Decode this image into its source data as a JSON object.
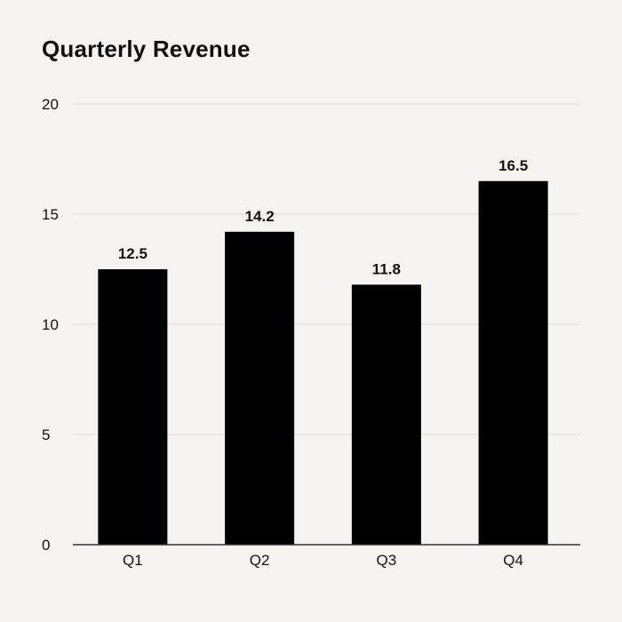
{
  "chart_data": {
    "type": "bar",
    "title": "Quarterly Revenue",
    "xlabel": "",
    "ylabel": "",
    "categories": [
      "Q1",
      "Q2",
      "Q3",
      "Q4"
    ],
    "values": [
      12.5,
      14.2,
      11.8,
      16.5
    ],
    "data_labels": [
      "12.5",
      "14.2",
      "11.8",
      "16.5"
    ],
    "ylim": [
      0,
      20
    ],
    "yticks": [
      0,
      5,
      10,
      15,
      20
    ],
    "ytick_labels": [
      "0",
      "5",
      "10",
      "15",
      "20"
    ],
    "grid": true,
    "legend": "none",
    "colors": {
      "bar": "#000000",
      "grid": "#dddcd7",
      "axis": "#333333",
      "background": "#f5f4f0"
    }
  }
}
